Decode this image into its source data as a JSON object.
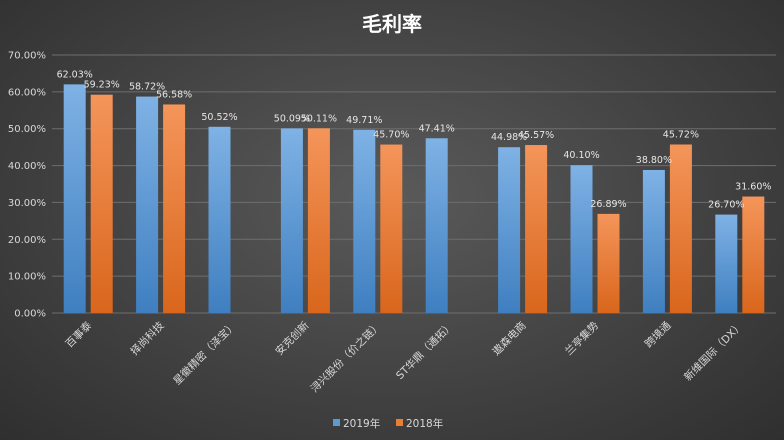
{
  "colors": {
    "series_2019": "#5b9bd5",
    "series_2018": "#ed7d31"
  },
  "chart_data": {
    "type": "bar",
    "title": "毛利率",
    "xlabel": "",
    "ylabel": "",
    "ylim": [
      0,
      70
    ],
    "y_tick_labels": [
      "0.00%",
      "10.00%",
      "20.00%",
      "30.00%",
      "40.00%",
      "50.00%",
      "60.00%",
      "70.00%"
    ],
    "grid": true,
    "legend_position": "bottom",
    "categories": [
      "百事泰",
      "择尚科技",
      "星徽精密（泽宝）",
      "安克创新",
      "浔兴股份（价之链）",
      "ST华鼎（通拓）",
      "遨森电商",
      "兰亭集势",
      "跨境通",
      "新维国际（DX）"
    ],
    "series": [
      {
        "name": "2019年",
        "values": [
          62.03,
          58.72,
          50.52,
          50.09,
          49.71,
          47.41,
          44.98,
          40.1,
          38.8,
          26.7
        ],
        "labels": [
          "62.03%",
          "58.72%",
          "50.52%",
          "50.09%",
          "49.71%",
          "47.41%",
          "44.98%",
          "40.10%",
          "38.80%",
          "26.70%"
        ]
      },
      {
        "name": "2018年",
        "values": [
          59.23,
          56.58,
          null,
          50.11,
          45.7,
          null,
          45.57,
          26.89,
          45.72,
          31.6
        ],
        "labels": [
          "59.23%",
          "56.58%",
          "",
          "50.11%",
          "45.70%",
          "",
          "45.57%",
          "26.89%",
          "45.72%",
          "31.60%"
        ]
      }
    ]
  }
}
